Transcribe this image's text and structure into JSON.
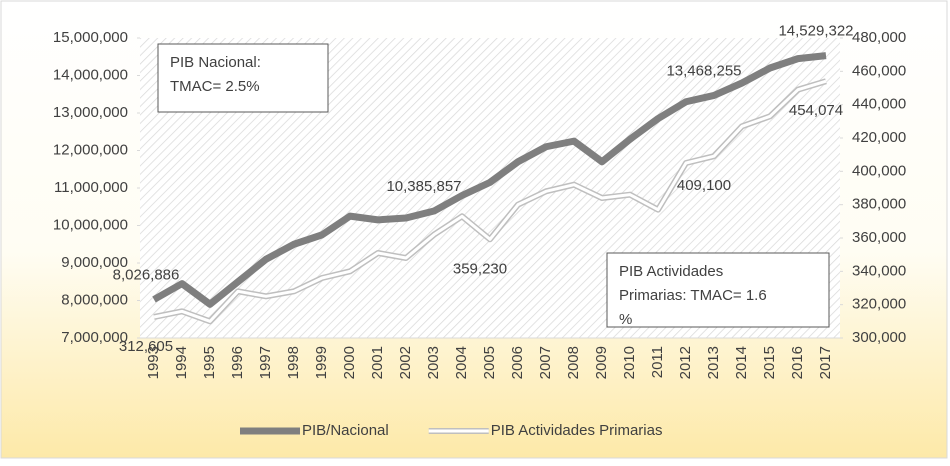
{
  "chart_data": {
    "type": "line",
    "categories": [
      "1993",
      "1994",
      "1995",
      "1996",
      "1997",
      "1998",
      "1999",
      "2000",
      "2001",
      "2002",
      "2003",
      "2004",
      "2005",
      "2006",
      "2007",
      "2008",
      "2009",
      "2010",
      "2011",
      "2012",
      "2013",
      "2014",
      "2015",
      "2016",
      "2017"
    ],
    "series": [
      {
        "name": "PIB/Nacional",
        "color": "#7f7f7f",
        "axis": "y",
        "values": [
          8026886,
          8450000,
          7900000,
          8500000,
          9100000,
          9500000,
          9750000,
          10250000,
          10150000,
          10200000,
          10385857,
          10800000,
          11150000,
          11700000,
          12100000,
          12250000,
          11700000,
          12300000,
          12850000,
          13300000,
          13468255,
          13800000,
          14200000,
          14450000,
          14529322
        ],
        "value_labels": [
          "8,026,886",
          null,
          null,
          null,
          null,
          null,
          null,
          null,
          null,
          null,
          "10,385,857",
          null,
          null,
          null,
          null,
          null,
          null,
          null,
          null,
          null,
          "13,468,255",
          null,
          null,
          null,
          "14,529,322"
        ]
      },
      {
        "name": "PIB Actividades Primarias",
        "color": "#bfbfbf",
        "axis": "y2",
        "values": [
          312605,
          316000,
          310000,
          328000,
          325000,
          328000,
          336000,
          340000,
          351000,
          348000,
          362000,
          373000,
          359230,
          380000,
          388000,
          392000,
          384000,
          386000,
          377000,
          405000,
          409100,
          427000,
          433000,
          449000,
          454074
        ],
        "value_labels": [
          "312,605",
          null,
          null,
          null,
          null,
          null,
          null,
          null,
          null,
          null,
          null,
          null,
          "359,230",
          null,
          null,
          null,
          null,
          null,
          null,
          null,
          "409,100",
          null,
          null,
          null,
          "454,074"
        ]
      }
    ],
    "ylim": [
      7000000,
      15000000
    ],
    "yticks": [
      {
        "value": 7000000,
        "label": "7,000,000"
      },
      {
        "value": 8000000,
        "label": "8,000,000"
      },
      {
        "value": 9000000,
        "label": "9,000,000"
      },
      {
        "value": 10000000,
        "label": "10,000,000"
      },
      {
        "value": 11000000,
        "label": "11,000,000"
      },
      {
        "value": 12000000,
        "label": "12,000,000"
      },
      {
        "value": 13000000,
        "label": "13,000,000"
      },
      {
        "value": 14000000,
        "label": "14,000,000"
      },
      {
        "value": 15000000,
        "label": "15,000,000"
      }
    ],
    "y2lim": [
      300000,
      480000
    ],
    "y2ticks": [
      {
        "value": 300000,
        "label": "300,000"
      },
      {
        "value": 320000,
        "label": "320,000"
      },
      {
        "value": 340000,
        "label": "340,000"
      },
      {
        "value": 360000,
        "label": "360,000"
      },
      {
        "value": 380000,
        "label": "380,000"
      },
      {
        "value": 400000,
        "label": "400,000"
      },
      {
        "value": 420000,
        "label": "420,000"
      },
      {
        "value": 440000,
        "label": "440,000"
      },
      {
        "value": 460000,
        "label": "460,000"
      },
      {
        "value": 480000,
        "label": "480,000"
      }
    ],
    "annotations": [
      [
        "PIB Nacional:",
        "TMAC= 2.5%"
      ],
      [
        "PIB Actividades",
        "Primarias: TMAC= 1.6",
        "%"
      ]
    ],
    "legend": "bottom"
  }
}
